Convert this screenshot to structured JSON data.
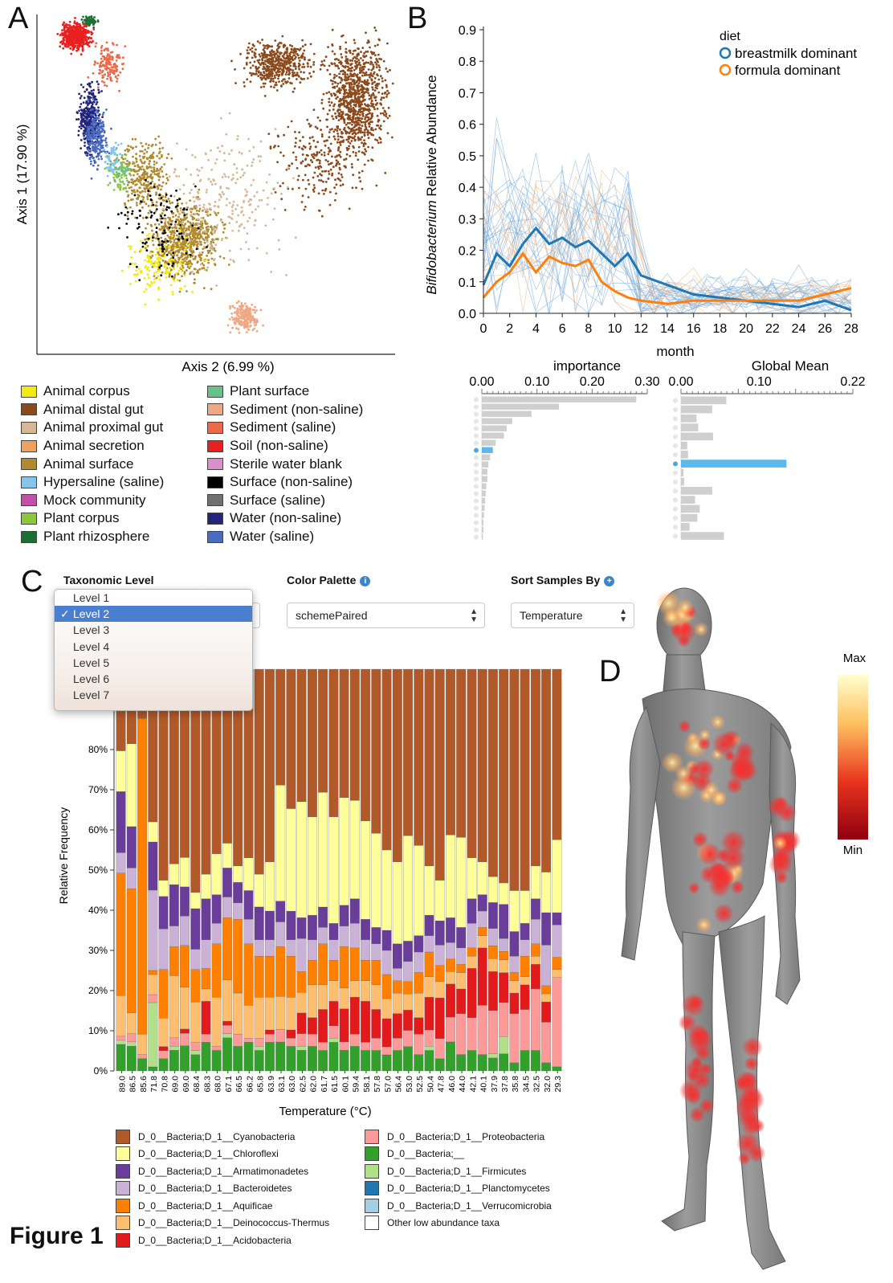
{
  "figure_label": "Figure 1",
  "panels": {
    "a": "A",
    "b": "B",
    "c": "C",
    "d": "D"
  },
  "panel_a": {
    "xlabel": "Axis 2 (6.99 %)",
    "ylabel": "Axis 1 (17.90 %)",
    "legend": [
      {
        "label": "Animal corpus",
        "color": "#f2ea10"
      },
      {
        "label": "Animal distal gut",
        "color": "#8b4a1c"
      },
      {
        "label": "Animal proximal gut",
        "color": "#d6b894"
      },
      {
        "label": "Animal secretion",
        "color": "#f0a060"
      },
      {
        "label": "Animal surface",
        "color": "#b08a2e"
      },
      {
        "label": "Hypersaline (saline)",
        "color": "#86c4ec"
      },
      {
        "label": "Mock community",
        "color": "#c050a8"
      },
      {
        "label": "Plant corpus",
        "color": "#8cc83c"
      },
      {
        "label": "Plant rhizosphere",
        "color": "#1e6e34"
      },
      {
        "label": "Plant surface",
        "color": "#6ac08a"
      },
      {
        "label": "Sediment (non-saline)",
        "color": "#f0a884"
      },
      {
        "label": "Sediment (saline)",
        "color": "#ec6a4a"
      },
      {
        "label": "Soil (non-saline)",
        "color": "#e82020"
      },
      {
        "label": "Sterile water blank",
        "color": "#d890c8"
      },
      {
        "label": "Surface (non-saline)",
        "color": "#000000"
      },
      {
        "label": "Surface (saline)",
        "color": "#707070"
      },
      {
        "label": "Water (non-saline)",
        "color": "#23257a"
      },
      {
        "label": "Water (saline)",
        "color": "#4a6cc0"
      }
    ]
  },
  "panel_b": {
    "legend_title": "diet",
    "ylabel_italic": "Bifidobacterium",
    "ylabel_rest": " Relative Abundance",
    "xlabel": "month",
    "importance_title": "importance",
    "importance_ticks": [
      "0.00",
      "0.10",
      "0.20",
      "0.30"
    ],
    "global_mean_title": "Global Mean",
    "global_mean_ticks": [
      "0.00",
      "0.10",
      "0.22"
    ],
    "y_ticks": [
      "0.0",
      "0.1",
      "0.2",
      "0.3",
      "0.4",
      "0.5",
      "0.6",
      "0.7",
      "0.8",
      "0.9"
    ],
    "x_ticks": [
      "0",
      "2",
      "4",
      "6",
      "8",
      "10",
      "12",
      "14",
      "16",
      "18",
      "20",
      "22",
      "24",
      "26",
      "28"
    ]
  },
  "panel_c": {
    "taxonomic_level_label": "Taxonomic Level",
    "levels": [
      "Level 1",
      "Level 2",
      "Level 3",
      "Level 4",
      "Level 5",
      "Level 6",
      "Level 7"
    ],
    "selected_level": "Level 2",
    "check_mark": "✓",
    "color_palette_label": "Color Palette",
    "color_palette_value": "schemePaired",
    "sort_label": "Sort Samples By",
    "sort_value": "Temperature",
    "info_icon": "i",
    "plus_icon": "+",
    "ylabel": "Relative Frequency",
    "xlabel": "Temperature (°C)",
    "y_ticks": [
      "0%",
      "10%",
      "20%",
      "30%",
      "40%",
      "50%",
      "60%",
      "70%",
      "80%"
    ],
    "legend": [
      {
        "label": "D_0__Bacteria;D_1__Cyanobacteria",
        "color": "#b15928"
      },
      {
        "label": "D_0__Bacteria;D_1__Chloroflexi",
        "color": "#ffff99"
      },
      {
        "label": "D_0__Bacteria;D_1__Armatimonadetes",
        "color": "#6a3d9a"
      },
      {
        "label": "D_0__Bacteria;D_1__Bacteroidetes",
        "color": "#cab2d6"
      },
      {
        "label": "D_0__Bacteria;D_1__Aquificae",
        "color": "#ff7f00"
      },
      {
        "label": "D_0__Bacteria;D_1__Deinococcus-Thermus",
        "color": "#fdbf6f"
      },
      {
        "label": "D_0__Bacteria;D_1__Acidobacteria",
        "color": "#e31a1c"
      },
      {
        "label": "D_0__Bacteria;D_1__Proteobacteria",
        "color": "#fb9a99"
      },
      {
        "label": "D_0__Bacteria;__",
        "color": "#33a02c"
      },
      {
        "label": "D_0__Bacteria;D_1__Firmicutes",
        "color": "#b2df8a"
      },
      {
        "label": "D_0__Bacteria;D_1__Planctomycetes",
        "color": "#1f78b4"
      },
      {
        "label": "D_0__Bacteria;D_1__Verrucomicrobia",
        "color": "#a6cee3"
      },
      {
        "label": "Other low abundance taxa",
        "color": "#ffffff"
      }
    ]
  },
  "panel_d": {
    "max_label": "Max",
    "min_label": "Min"
  },
  "chart_data": [
    {
      "type": "line",
      "xlabel": "month",
      "ylabel": "Bifidobacterium Relative Abundance",
      "xlim": [
        0,
        28
      ],
      "ylim": [
        0,
        0.9
      ],
      "series": [
        {
          "name": "breastmilk dominant",
          "color": "#1f77b4",
          "x": [
            0,
            1,
            2,
            3,
            4,
            5,
            6,
            7,
            8,
            9,
            10,
            11,
            12,
            14,
            16,
            18,
            20,
            22,
            24,
            26,
            28
          ],
          "y": [
            0.09,
            0.19,
            0.15,
            0.22,
            0.27,
            0.22,
            0.24,
            0.21,
            0.23,
            0.19,
            0.15,
            0.19,
            0.12,
            0.09,
            0.06,
            0.05,
            0.04,
            0.03,
            0.02,
            0.04,
            0.01
          ]
        },
        {
          "name": "formula dominant",
          "color": "#ff7f0e",
          "x": [
            0,
            1,
            2,
            3,
            4,
            5,
            6,
            7,
            8,
            9,
            10,
            11,
            12,
            14,
            16,
            18,
            20,
            22,
            24,
            26,
            28
          ],
          "y": [
            0.05,
            0.1,
            0.13,
            0.19,
            0.13,
            0.18,
            0.16,
            0.15,
            0.17,
            0.1,
            0.07,
            0.05,
            0.04,
            0.03,
            0.04,
            0.04,
            0.04,
            0.04,
            0.04,
            0.06,
            0.08
          ]
        }
      ]
    },
    {
      "type": "bar",
      "title": "importance",
      "orientation": "horizontal",
      "xlim": [
        0,
        0.3
      ],
      "values": [
        0.28,
        0.14,
        0.09,
        0.055,
        0.045,
        0.04,
        0.025,
        0.02,
        0.015,
        0.012,
        0.01,
        0.01,
        0.008,
        0.007,
        0.006,
        0.005,
        0.004,
        0.003,
        0.003,
        0.002
      ]
    },
    {
      "type": "bar",
      "title": "Global Mean",
      "orientation": "horizontal",
      "xlim": [
        0,
        0.22
      ],
      "values": [
        0.058,
        0.04,
        0.02,
        0.022,
        0.041,
        0.008,
        0.009,
        0.135,
        0.003,
        0.004,
        0.04,
        0.018,
        0.024,
        0.021,
        0.011,
        0.055
      ]
    },
    {
      "type": "bar",
      "stacked": true,
      "xlabel": "Temperature (°C)",
      "ylabel": "Relative Frequency",
      "ylim": [
        0,
        1
      ],
      "categories": [
        "89.0",
        "86.5",
        "85.6",
        "71.8",
        "70.8",
        "69.0",
        "69.0",
        "68.4",
        "68.3",
        "68.0",
        "67.1",
        "66.5",
        "66.2",
        "65.8",
        "63.9",
        "63.1",
        "63.0",
        "62.5",
        "62.0",
        "61.7",
        "61.5",
        "60.1",
        "59.4",
        "58.1",
        "57.8",
        "57.0",
        "56.4",
        "53.0",
        "52.5",
        "50.4",
        "47.8",
        "46.0",
        "44.0",
        "42.1",
        "40.1",
        "37.9",
        "37.8",
        "35.8",
        "34.5",
        "32.5",
        "32.0",
        "29.3"
      ],
      "series": [
        {
          "name": "D_0__Bacteria;__",
          "values": [
            0.065,
            0.06,
            0.03,
            0.01,
            0.03,
            0.05,
            0.06,
            0.04,
            0.07,
            0.05,
            0.08,
            0.06,
            0.07,
            0.05,
            0.07,
            0.07,
            0.06,
            0.05,
            0.06,
            0.05,
            0.07,
            0.05,
            0.06,
            0.05,
            0.05,
            0.04,
            0.05,
            0.06,
            0.04,
            0.05,
            0.03,
            0.07,
            0.04,
            0.05,
            0.04,
            0.03,
            0.04,
            0.02,
            0.05,
            0.05,
            0.02,
            0.01
          ]
        },
        {
          "name": "D_0__Bacteria;D_1__Firmicutes",
          "values": [
            0.01,
            0.01,
            0.0,
            0.16,
            0.0,
            0.01,
            0.0,
            0.01,
            0.0,
            0.0,
            0.01,
            0.0,
            0.0,
            0.01,
            0.0,
            0.0,
            0.0,
            0.01,
            0.0,
            0.0,
            0.01,
            0.0,
            0.0,
            0.0,
            0.0,
            0.0,
            0.0,
            0.0,
            0.0,
            0.01,
            0.0,
            0.0,
            0.0,
            0.0,
            0.0,
            0.01,
            0.04,
            0.0,
            0.0,
            0.0,
            0.0,
            0.0
          ]
        },
        {
          "name": "D_0__Bacteria;D_1__Proteobacteria",
          "values": [
            0.01,
            0.02,
            0.01,
            0.02,
            0.02,
            0.02,
            0.03,
            0.02,
            0.02,
            0.01,
            0.02,
            0.03,
            0.01,
            0.02,
            0.02,
            0.03,
            0.02,
            0.03,
            0.03,
            0.02,
            0.03,
            0.02,
            0.03,
            0.02,
            0.03,
            0.02,
            0.03,
            0.04,
            0.05,
            0.04,
            0.05,
            0.06,
            0.1,
            0.08,
            0.12,
            0.1,
            0.08,
            0.12,
            0.1,
            0.15,
            0.1,
            0.22
          ]
        },
        {
          "name": "D_0__Bacteria;D_1__Acidobacteria",
          "values": [
            0.0,
            0.0,
            0.0,
            0.0,
            0.01,
            0.0,
            0.01,
            0.0,
            0.08,
            0.0,
            0.01,
            0.0,
            0.0,
            0.0,
            0.01,
            0.0,
            0.02,
            0.05,
            0.04,
            0.08,
            0.06,
            0.08,
            0.09,
            0.1,
            0.07,
            0.07,
            0.06,
            0.05,
            0.04,
            0.08,
            0.1,
            0.08,
            0.06,
            0.12,
            0.14,
            0.09,
            0.07,
            0.05,
            0.06,
            0.06,
            0.05,
            0.0
          ]
        },
        {
          "name": "D_0__Bacteria;D_1__Deinococcus-Thermus",
          "values": [
            0.1,
            0.05,
            0.05,
            0.05,
            0.07,
            0.15,
            0.1,
            0.1,
            0.03,
            0.12,
            0.1,
            0.1,
            0.08,
            0.1,
            0.08,
            0.08,
            0.08,
            0.05,
            0.08,
            0.06,
            0.05,
            0.05,
            0.04,
            0.05,
            0.06,
            0.05,
            0.05,
            0.04,
            0.06,
            0.05,
            0.04,
            0.03,
            0.04,
            0.03,
            0.03,
            0.03,
            0.03,
            0.03,
            0.02,
            0.02,
            0.02,
            0.02
          ]
        },
        {
          "name": "D_0__Bacteria;D_1__Aquificae",
          "values": [
            0.3,
            0.3,
            0.77,
            0.01,
            0.12,
            0.07,
            0.1,
            0.08,
            0.05,
            0.13,
            0.15,
            0.18,
            0.15,
            0.1,
            0.1,
            0.12,
            0.1,
            0.05,
            0.06,
            0.1,
            0.05,
            0.1,
            0.08,
            0.05,
            0.06,
            0.06,
            0.03,
            0.03,
            0.05,
            0.06,
            0.04,
            0.03,
            0.02,
            0.02,
            0.02,
            0.03,
            0.02,
            0.02,
            0.05,
            0.03,
            0.02,
            0.03
          ]
        },
        {
          "name": "D_0__Bacteria;D_1__Bacteroidetes",
          "values": [
            0.05,
            0.05,
            0.0,
            0.2,
            0.1,
            0.05,
            0.07,
            0.05,
            0.07,
            0.05,
            0.05,
            0.04,
            0.06,
            0.04,
            0.04,
            0.06,
            0.04,
            0.08,
            0.05,
            0.04,
            0.05,
            0.05,
            0.06,
            0.05,
            0.04,
            0.06,
            0.03,
            0.05,
            0.05,
            0.04,
            0.05,
            0.04,
            0.04,
            0.06,
            0.04,
            0.04,
            0.03,
            0.04,
            0.04,
            0.06,
            0.1,
            0.08
          ]
        },
        {
          "name": "D_0__Bacteria;D_1__Armatimonadetes",
          "values": [
            0.15,
            0.1,
            0.0,
            0.12,
            0.08,
            0.1,
            0.07,
            0.1,
            0.1,
            0.07,
            0.07,
            0.05,
            0.07,
            0.08,
            0.07,
            0.05,
            0.07,
            0.05,
            0.06,
            0.05,
            0.04,
            0.05,
            0.06,
            0.05,
            0.04,
            0.05,
            0.06,
            0.05,
            0.04,
            0.05,
            0.06,
            0.06,
            0.05,
            0.06,
            0.04,
            0.06,
            0.08,
            0.06,
            0.04,
            0.05,
            0.08,
            0.03
          ]
        },
        {
          "name": "D_0__Bacteria;D_1__Chloroflexi",
          "values": [
            0.1,
            0.2,
            0.0,
            0.05,
            0.04,
            0.05,
            0.07,
            0.04,
            0.06,
            0.1,
            0.06,
            0.04,
            0.08,
            0.08,
            0.12,
            0.28,
            0.25,
            0.28,
            0.24,
            0.28,
            0.26,
            0.26,
            0.24,
            0.24,
            0.23,
            0.2,
            0.2,
            0.26,
            0.22,
            0.12,
            0.1,
            0.2,
            0.22,
            0.1,
            0.08,
            0.06,
            0.05,
            0.1,
            0.08,
            0.08,
            0.1,
            0.18
          ]
        },
        {
          "name": "D_0__Bacteria;D_1__Cyanobacteria",
          "values": [
            0.2,
            0.18,
            0.12,
            0.38,
            0.52,
            0.47,
            0.45,
            0.55,
            0.5,
            0.45,
            0.42,
            0.48,
            0.46,
            0.5,
            0.47,
            0.28,
            0.34,
            0.32,
            0.36,
            0.3,
            0.36,
            0.31,
            0.32,
            0.37,
            0.4,
            0.45,
            0.47,
            0.41,
            0.43,
            0.48,
            0.52,
            0.4,
            0.41,
            0.46,
            0.47,
            0.48,
            0.5,
            0.54,
            0.54,
            0.48,
            0.5,
            0.42
          ]
        }
      ]
    }
  ]
}
